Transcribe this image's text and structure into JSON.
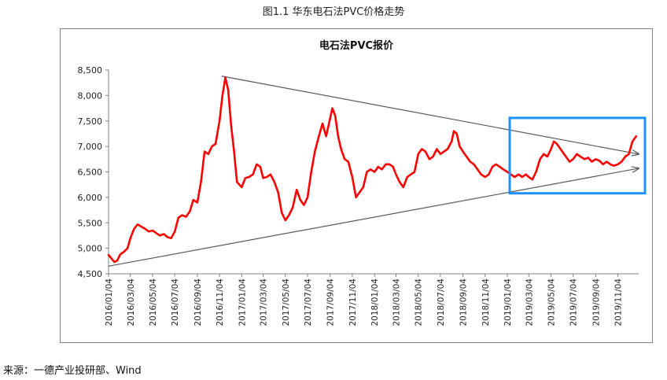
{
  "figure": {
    "caption": "图1.1 华东电石法PVC价格走势",
    "source": "来源：一德产业投研部、Wind"
  },
  "colors": {
    "series": "#ff0000",
    "highlight_box": "#1e90ff",
    "trendline": "#595959",
    "axis": "#808080"
  },
  "chart_data": {
    "type": "line",
    "title": "电石法PVC报价",
    "xlabel": "",
    "ylabel": "",
    "ylim": [
      4500,
      8500
    ],
    "yticks": [
      4500,
      5000,
      5500,
      6000,
      6500,
      7000,
      7500,
      8000,
      8500
    ],
    "ytick_labels": [
      "4,500",
      "5,000",
      "5,500",
      "6,000",
      "6,500",
      "7,000",
      "7,500",
      "8,000",
      "8,500"
    ],
    "xlim": [
      "2016-01-04",
      "2019-12-31"
    ],
    "xtick_labels": [
      "2016/01/04",
      "2016/03/04",
      "2016/05/04",
      "2016/07/04",
      "2016/09/04",
      "2016/11/04",
      "2017/01/04",
      "2017/03/04",
      "2017/05/04",
      "2017/07/04",
      "2017/09/04",
      "2017/11/04",
      "2018/01/04",
      "2018/03/04",
      "2018/05/04",
      "2018/07/04",
      "2018/09/04",
      "2018/11/04",
      "2019/01/04",
      "2019/03/04",
      "2019/05/04",
      "2019/07/04",
      "2019/09/04",
      "2019/11/04"
    ],
    "grid": false,
    "legend": "none",
    "series": [
      {
        "points": [
          [
            "2016-01-04",
            4870
          ],
          [
            "2016-01-12",
            4800
          ],
          [
            "2016-01-20",
            4730
          ],
          [
            "2016-01-28",
            4760
          ],
          [
            "2016-02-05",
            4880
          ],
          [
            "2016-02-15",
            4930
          ],
          [
            "2016-02-25",
            5000
          ],
          [
            "2016-03-04",
            5200
          ],
          [
            "2016-03-14",
            5380
          ],
          [
            "2016-03-24",
            5470
          ],
          [
            "2016-04-04",
            5420
          ],
          [
            "2016-04-14",
            5380
          ],
          [
            "2016-04-24",
            5330
          ],
          [
            "2016-05-04",
            5350
          ],
          [
            "2016-05-14",
            5300
          ],
          [
            "2016-05-24",
            5250
          ],
          [
            "2016-06-04",
            5280
          ],
          [
            "2016-06-14",
            5220
          ],
          [
            "2016-06-24",
            5200
          ],
          [
            "2016-07-04",
            5330
          ],
          [
            "2016-07-14",
            5600
          ],
          [
            "2016-07-24",
            5650
          ],
          [
            "2016-08-04",
            5620
          ],
          [
            "2016-08-14",
            5720
          ],
          [
            "2016-08-24",
            5950
          ],
          [
            "2016-09-04",
            5900
          ],
          [
            "2016-09-14",
            6300
          ],
          [
            "2016-09-24",
            6900
          ],
          [
            "2016-10-04",
            6850
          ],
          [
            "2016-10-14",
            7000
          ],
          [
            "2016-10-24",
            7050
          ],
          [
            "2016-11-04",
            7500
          ],
          [
            "2016-11-12",
            8000
          ],
          [
            "2016-11-20",
            8350
          ],
          [
            "2016-11-28",
            8100
          ],
          [
            "2016-12-06",
            7400
          ],
          [
            "2016-12-14",
            6900
          ],
          [
            "2016-12-22",
            6300
          ],
          [
            "2017-01-04",
            6200
          ],
          [
            "2017-01-14",
            6380
          ],
          [
            "2017-01-24",
            6400
          ],
          [
            "2017-02-04",
            6450
          ],
          [
            "2017-02-14",
            6650
          ],
          [
            "2017-02-24",
            6600
          ],
          [
            "2017-03-04",
            6380
          ],
          [
            "2017-03-14",
            6400
          ],
          [
            "2017-03-24",
            6450
          ],
          [
            "2017-04-04",
            6300
          ],
          [
            "2017-04-14",
            6100
          ],
          [
            "2017-04-24",
            5700
          ],
          [
            "2017-05-04",
            5550
          ],
          [
            "2017-05-14",
            5650
          ],
          [
            "2017-05-24",
            5800
          ],
          [
            "2017-06-04",
            6150
          ],
          [
            "2017-06-14",
            5950
          ],
          [
            "2017-06-24",
            5850
          ],
          [
            "2017-07-04",
            6000
          ],
          [
            "2017-07-14",
            6500
          ],
          [
            "2017-07-24",
            6900
          ],
          [
            "2017-08-04",
            7200
          ],
          [
            "2017-08-14",
            7450
          ],
          [
            "2017-08-24",
            7200
          ],
          [
            "2017-09-04",
            7550
          ],
          [
            "2017-09-10",
            7750
          ],
          [
            "2017-09-18",
            7600
          ],
          [
            "2017-09-26",
            7200
          ],
          [
            "2017-10-04",
            6950
          ],
          [
            "2017-10-14",
            6750
          ],
          [
            "2017-10-24",
            6700
          ],
          [
            "2017-11-04",
            6400
          ],
          [
            "2017-11-14",
            6000
          ],
          [
            "2017-11-24",
            6100
          ],
          [
            "2017-12-04",
            6200
          ],
          [
            "2017-12-14",
            6500
          ],
          [
            "2017-12-24",
            6550
          ],
          [
            "2018-01-04",
            6500
          ],
          [
            "2018-01-14",
            6600
          ],
          [
            "2018-01-24",
            6550
          ],
          [
            "2018-02-04",
            6650
          ],
          [
            "2018-02-14",
            6650
          ],
          [
            "2018-02-24",
            6600
          ],
          [
            "2018-03-04",
            6450
          ],
          [
            "2018-03-14",
            6300
          ],
          [
            "2018-03-24",
            6200
          ],
          [
            "2018-04-04",
            6400
          ],
          [
            "2018-04-14",
            6450
          ],
          [
            "2018-04-24",
            6500
          ],
          [
            "2018-05-04",
            6850
          ],
          [
            "2018-05-14",
            6950
          ],
          [
            "2018-05-24",
            6900
          ],
          [
            "2018-06-04",
            6750
          ],
          [
            "2018-06-14",
            6800
          ],
          [
            "2018-06-24",
            6950
          ],
          [
            "2018-07-04",
            6850
          ],
          [
            "2018-07-14",
            6900
          ],
          [
            "2018-07-24",
            6950
          ],
          [
            "2018-08-04",
            7100
          ],
          [
            "2018-08-10",
            7300
          ],
          [
            "2018-08-18",
            7250
          ],
          [
            "2018-08-26",
            7000
          ],
          [
            "2018-09-04",
            6900
          ],
          [
            "2018-09-14",
            6800
          ],
          [
            "2018-09-24",
            6700
          ],
          [
            "2018-10-04",
            6650
          ],
          [
            "2018-10-14",
            6550
          ],
          [
            "2018-10-24",
            6450
          ],
          [
            "2018-11-04",
            6400
          ],
          [
            "2018-11-14",
            6450
          ],
          [
            "2018-11-24",
            6600
          ],
          [
            "2018-12-04",
            6650
          ],
          [
            "2018-12-14",
            6600
          ],
          [
            "2018-12-24",
            6550
          ],
          [
            "2019-01-04",
            6500
          ],
          [
            "2019-01-14",
            6450
          ],
          [
            "2019-01-24",
            6400
          ],
          [
            "2019-02-04",
            6450
          ],
          [
            "2019-02-14",
            6400
          ],
          [
            "2019-02-24",
            6450
          ],
          [
            "2019-03-04",
            6400
          ],
          [
            "2019-03-14",
            6350
          ],
          [
            "2019-03-24",
            6500
          ],
          [
            "2019-04-04",
            6750
          ],
          [
            "2019-04-14",
            6850
          ],
          [
            "2019-04-24",
            6800
          ],
          [
            "2019-05-04",
            6950
          ],
          [
            "2019-05-12",
            7100
          ],
          [
            "2019-05-20",
            7050
          ],
          [
            "2019-06-04",
            6900
          ],
          [
            "2019-06-14",
            6800
          ],
          [
            "2019-06-24",
            6700
          ],
          [
            "2019-07-04",
            6750
          ],
          [
            "2019-07-14",
            6850
          ],
          [
            "2019-07-24",
            6800
          ],
          [
            "2019-08-04",
            6750
          ],
          [
            "2019-08-14",
            6780
          ],
          [
            "2019-08-24",
            6700
          ],
          [
            "2019-09-04",
            6750
          ],
          [
            "2019-09-14",
            6720
          ],
          [
            "2019-09-24",
            6650
          ],
          [
            "2019-10-04",
            6700
          ],
          [
            "2019-10-14",
            6650
          ],
          [
            "2019-10-24",
            6620
          ],
          [
            "2019-11-04",
            6650
          ],
          [
            "2019-11-14",
            6700
          ],
          [
            "2019-11-24",
            6800
          ],
          [
            "2019-12-04",
            6850
          ],
          [
            "2019-12-14",
            7100
          ],
          [
            "2019-12-24",
            7200
          ]
        ]
      }
    ],
    "trendlines": [
      {
        "from": [
          "2016-11-10",
          8380
        ],
        "to": [
          "2019-12-31",
          6850
        ]
      },
      {
        "from": [
          "2016-01-04",
          4650
        ],
        "to": [
          "2019-12-31",
          6570
        ]
      }
    ],
    "highlight_box": {
      "x": [
        "2019-01-04",
        "2019-12-31"
      ],
      "y": [
        6080,
        7560
      ]
    }
  }
}
